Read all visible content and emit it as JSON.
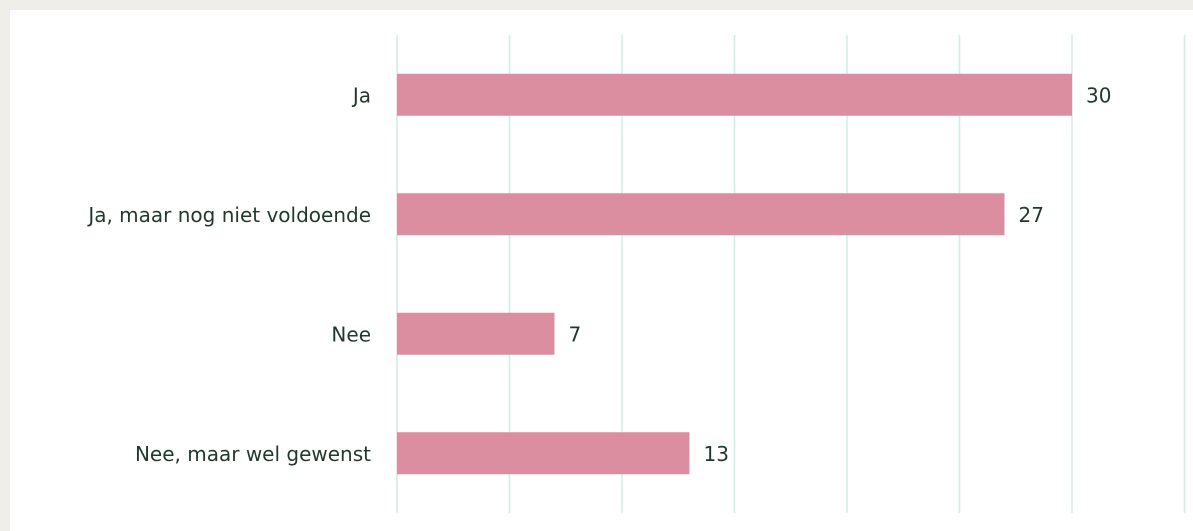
{
  "chart_data": {
    "type": "bar",
    "orientation": "horizontal",
    "categories": [
      "Ja",
      "Ja, maar nog niet voldoende",
      "Nee",
      "Nee, maar wel gewenst"
    ],
    "values": [
      30,
      27,
      7,
      13
    ],
    "color": "#db8ea0",
    "xlim": [
      0,
      35
    ],
    "xticks": [
      0,
      5,
      10,
      15,
      20,
      25,
      30,
      35
    ],
    "grid": true
  }
}
